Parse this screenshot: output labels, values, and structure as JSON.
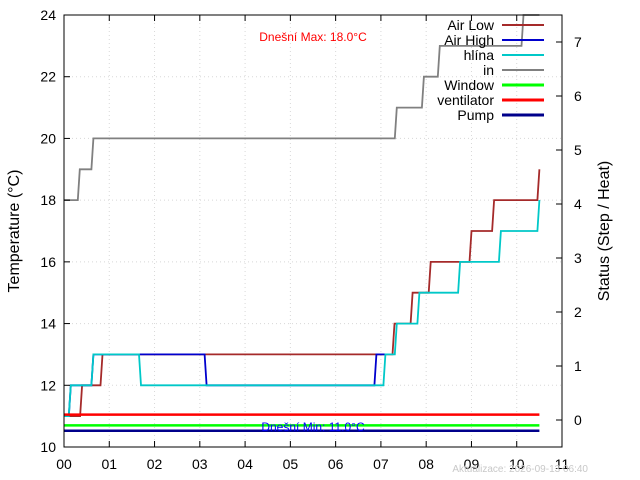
{
  "chart_data": {
    "type": "line",
    "x_ticks": [
      "00",
      "01",
      "02",
      "03",
      "04",
      "05",
      "06",
      "07",
      "08",
      "09",
      "10",
      "11"
    ],
    "xlim": [
      0,
      11
    ],
    "ylabel": "Temperature (°C)",
    "ylim": [
      10,
      24
    ],
    "y_ticks": [
      10,
      12,
      14,
      16,
      18,
      20,
      22,
      24
    ],
    "y2label": "Status (Step / Heat)",
    "y2lim": [
      -0.5,
      7.5
    ],
    "y2_ticks": [
      0,
      1,
      2,
      3,
      4,
      5,
      6,
      7
    ],
    "grid": true,
    "legend_position": "top-right",
    "annotations": {
      "max": {
        "text": "Dnešní Max: 18.0°C",
        "color": "#ff0000"
      },
      "min": {
        "text": "Dnešní Min: 11.0°C",
        "color": "#0000ff"
      }
    },
    "footer": "Aktualizace: 2026-09-13 06:40",
    "series": [
      {
        "name": "Air Low",
        "axis": "left",
        "color": "#a52a2a",
        "step": true,
        "points": [
          [
            0,
            11
          ],
          [
            0.25,
            11
          ],
          [
            0.4,
            12
          ],
          [
            0.65,
            12
          ],
          [
            0.85,
            13
          ],
          [
            2.0,
            13
          ],
          [
            7.0,
            13
          ],
          [
            7.3,
            14
          ],
          [
            7.7,
            15
          ],
          [
            8.1,
            16
          ],
          [
            8.8,
            16
          ],
          [
            9.0,
            17
          ],
          [
            9.5,
            18
          ],
          [
            10.5,
            19
          ]
        ]
      },
      {
        "name": "Air High",
        "axis": "left",
        "color": "#0000cd",
        "step": true,
        "points": [
          [
            0,
            11
          ],
          [
            0.15,
            12
          ],
          [
            0.65,
            13
          ],
          [
            3.15,
            12
          ],
          [
            6.9,
            13
          ],
          [
            7.1,
            13
          ]
        ]
      },
      {
        "name": "hlína",
        "axis": "left",
        "color": "#00c8c8",
        "step": true,
        "points": [
          [
            0,
            11
          ],
          [
            0.15,
            12
          ],
          [
            0.65,
            13
          ],
          [
            1.7,
            12
          ],
          [
            7.1,
            13
          ],
          [
            7.35,
            14
          ],
          [
            7.85,
            15
          ],
          [
            8.75,
            16
          ],
          [
            9.65,
            17
          ],
          [
            10.5,
            18
          ]
        ]
      },
      {
        "name": "in",
        "axis": "left",
        "color": "#808080",
        "step": true,
        "points": [
          [
            0,
            18
          ],
          [
            0.35,
            19
          ],
          [
            0.65,
            20
          ],
          [
            7.35,
            21
          ],
          [
            7.95,
            22
          ],
          [
            8.3,
            23
          ],
          [
            9.3,
            23
          ],
          [
            10.15,
            24
          ],
          [
            10.5,
            24
          ]
        ]
      },
      {
        "name": "Window",
        "axis": "right",
        "color": "#00ff00",
        "points": [
          [
            0,
            -0.1
          ],
          [
            10.5,
            -0.1
          ]
        ]
      },
      {
        "name": "ventilator",
        "axis": "right",
        "color": "#ff0000",
        "points": [
          [
            0,
            0.1
          ],
          [
            10.5,
            0.1
          ]
        ]
      },
      {
        "name": "Pump",
        "axis": "right",
        "color": "#00008b",
        "points": [
          [
            0,
            -0.2
          ],
          [
            10.5,
            -0.2
          ]
        ]
      }
    ]
  }
}
